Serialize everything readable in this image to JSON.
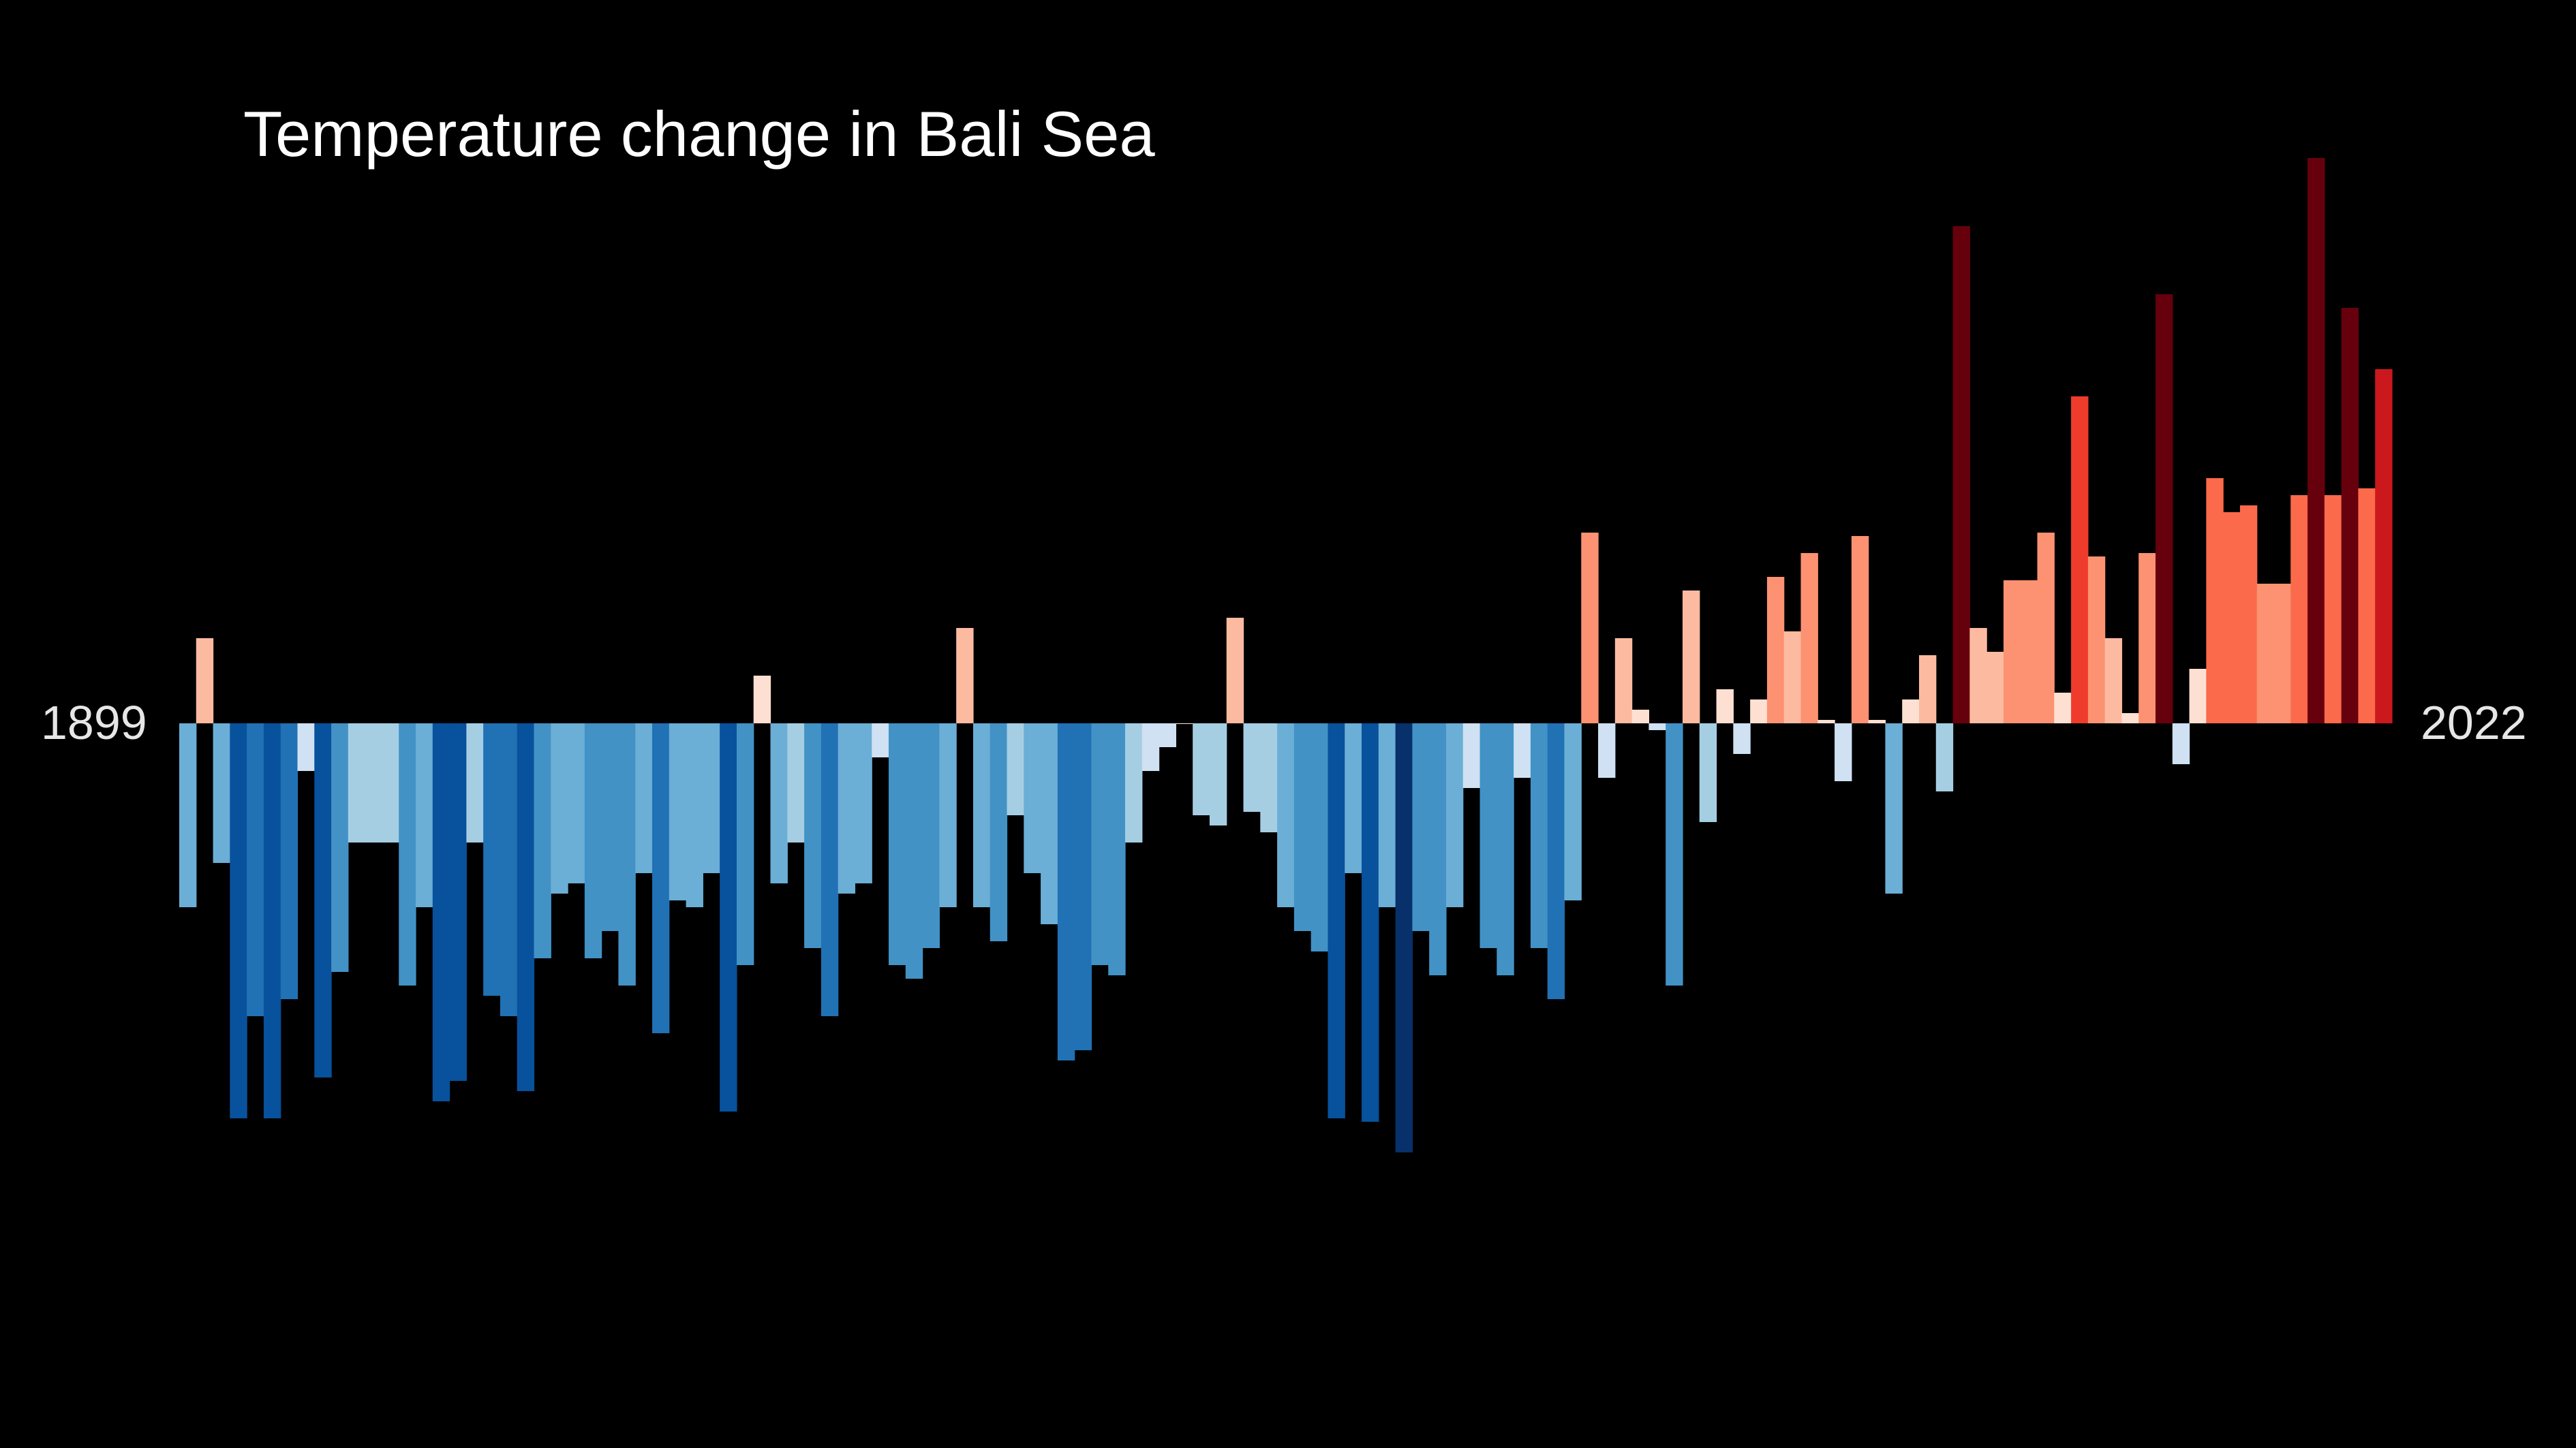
{
  "chart_data": {
    "type": "bar",
    "title": "Temperature change in Bali Sea",
    "start_year_label": "1899",
    "end_year_label": "2022",
    "years": [
      1899,
      2022
    ],
    "values": [
      -0.54,
      0.25,
      -0.41,
      -1.16,
      -0.86,
      -1.16,
      -0.81,
      -0.14,
      -1.04,
      -0.73,
      -0.35,
      -0.35,
      -0.35,
      -0.77,
      -0.54,
      -1.11,
      -1.05,
      -0.35,
      -0.8,
      -0.86,
      -1.08,
      -0.69,
      -0.5,
      -0.47,
      -0.69,
      -0.61,
      -0.77,
      -0.44,
      -0.91,
      -0.52,
      -0.54,
      -0.44,
      -1.14,
      -0.71,
      0.14,
      -0.47,
      -0.35,
      -0.66,
      -0.86,
      -0.5,
      -0.47,
      -0.1,
      -0.71,
      -0.75,
      -0.66,
      -0.54,
      0.28,
      -0.54,
      -0.64,
      -0.27,
      -0.44,
      -0.59,
      -0.99,
      -0.96,
      -0.71,
      -0.74,
      -0.35,
      -0.14,
      -0.07,
      0,
      -0.27,
      -0.3,
      0.31,
      -0.26,
      -0.32,
      -0.54,
      -0.61,
      -0.67,
      -1.16,
      -0.44,
      -1.17,
      -0.54,
      -1.26,
      -0.61,
      -0.74,
      -0.54,
      -0.19,
      -0.66,
      -0.74,
      -0.16,
      -0.66,
      -0.81,
      -0.52,
      0.56,
      -0.16,
      0.25,
      0.04,
      -0.02,
      -0.77,
      0.39,
      -0.29,
      0.1,
      -0.09,
      0.07,
      0.43,
      0.27,
      0.5,
      0.01,
      -0.17,
      0.55,
      0.01,
      -0.5,
      0.07,
      0.2,
      -0.2,
      1.46,
      0.28,
      0.21,
      0.42,
      0.42,
      0.56,
      0.09,
      0.96,
      0.49,
      0.25,
      0.03,
      0.5,
      1.26,
      -0.12,
      0.16,
      0.72,
      0.62,
      0.64,
      0.41,
      0.41,
      0.67,
      1.66,
      0.67,
      1.22,
      0.69,
      1.04
    ]
  }
}
